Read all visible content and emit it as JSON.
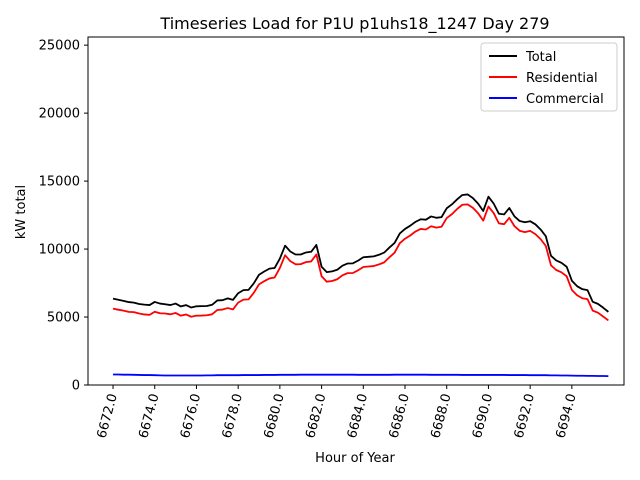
{
  "chart_data": {
    "type": "line",
    "title": "Timeseries Load for P1U p1uhs18_1247  Day 279",
    "xlabel": "Hour of Year",
    "ylabel": "kW total",
    "xlim": [
      6670.8,
      6696.5
    ],
    "ylim": [
      0,
      25600
    ],
    "xticks": [
      6672,
      6674,
      6676,
      6678,
      6680,
      6682,
      6684,
      6686,
      6688,
      6690,
      6692,
      6694
    ],
    "xtick_labels": [
      "6672.0",
      "6674.0",
      "6676.0",
      "6678.0",
      "6680.0",
      "6682.0",
      "6684.0",
      "6686.0",
      "6688.0",
      "6690.0",
      "6692.0",
      "6694.0"
    ],
    "yticks": [
      0,
      5000,
      10000,
      15000,
      20000,
      25000
    ],
    "ytick_labels": [
      "0",
      "5000",
      "10000",
      "15000",
      "20000",
      "25000"
    ],
    "legend_position": "top-right",
    "x": [
      6672.0,
      6672.25,
      6672.5,
      6672.75,
      6673.0,
      6673.25,
      6673.5,
      6673.75,
      6674.0,
      6674.25,
      6674.5,
      6674.75,
      6675.0,
      6675.25,
      6675.5,
      6675.75,
      6676.0,
      6676.25,
      6676.5,
      6676.75,
      6677.0,
      6677.25,
      6677.5,
      6677.75,
      6678.0,
      6678.25,
      6678.5,
      6678.75,
      6679.0,
      6679.25,
      6679.5,
      6679.75,
      6680.0,
      6680.25,
      6680.5,
      6680.75,
      6681.0,
      6681.25,
      6681.5,
      6681.75,
      6682.0,
      6682.25,
      6682.5,
      6682.75,
      6683.0,
      6683.25,
      6683.5,
      6683.75,
      6684.0,
      6684.25,
      6684.5,
      6684.75,
      6685.0,
      6685.25,
      6685.5,
      6685.75,
      6686.0,
      6686.25,
      6686.5,
      6686.75,
      6687.0,
      6687.25,
      6687.5,
      6687.75,
      6688.0,
      6688.25,
      6688.5,
      6688.75,
      6689.0,
      6689.25,
      6689.5,
      6689.75,
      6690.0,
      6690.25,
      6690.5,
      6690.75,
      6691.0,
      6691.25,
      6691.5,
      6691.75,
      6692.0,
      6692.25,
      6692.5,
      6692.75,
      6693.0,
      6693.25,
      6693.5,
      6693.75,
      6694.0,
      6694.25,
      6694.5,
      6694.75,
      6695.0,
      6695.25,
      6695.5,
      6695.75
    ],
    "series": [
      {
        "name": "Total",
        "color": "#000000",
        "values": [
          6350,
          6270,
          6190,
          6100,
          6060,
          5960,
          5910,
          5880,
          6110,
          5990,
          5940,
          5880,
          5990,
          5780,
          5880,
          5700,
          5790,
          5800,
          5810,
          5900,
          6220,
          6240,
          6370,
          6260,
          6750,
          6980,
          7000,
          7480,
          8110,
          8350,
          8560,
          8610,
          9300,
          10250,
          9820,
          9600,
          9600,
          9750,
          9800,
          10300,
          8700,
          8300,
          8360,
          8480,
          8780,
          8940,
          8950,
          9150,
          9400,
          9430,
          9460,
          9580,
          9740,
          10110,
          10450,
          11150,
          11480,
          11720,
          12000,
          12190,
          12160,
          12400,
          12300,
          12350,
          13000,
          13290,
          13660,
          13980,
          14020,
          13760,
          13350,
          12800,
          13850,
          13350,
          12600,
          12550,
          13020,
          12400,
          12060,
          11970,
          12050,
          11820,
          11440,
          10950,
          9500,
          9160,
          8990,
          8700,
          7670,
          7270,
          7050,
          6980,
          6120,
          5970,
          5690,
          5380
        ]
      },
      {
        "name": "Residential",
        "color": "#ff0000",
        "values": [
          5620,
          5540,
          5470,
          5380,
          5360,
          5260,
          5190,
          5160,
          5390,
          5280,
          5260,
          5200,
          5300,
          5100,
          5190,
          5020,
          5100,
          5110,
          5130,
          5200,
          5520,
          5550,
          5660,
          5560,
          6060,
          6280,
          6300,
          6780,
          7400,
          7640,
          7840,
          7910,
          8610,
          9550,
          9110,
          8880,
          8890,
          9040,
          9090,
          9600,
          8000,
          7600,
          7650,
          7780,
          8070,
          8230,
          8240,
          8440,
          8680,
          8720,
          8750,
          8870,
          9020,
          9390,
          9730,
          10430,
          10760,
          11000,
          11290,
          11480,
          11440,
          11680,
          11580,
          11640,
          12280,
          12570,
          12950,
          13260,
          13290,
          13040,
          12640,
          12090,
          13130,
          12650,
          11890,
          11830,
          12300,
          11680,
          11340,
          11250,
          11340,
          11100,
          10730,
          10230,
          8800,
          8460,
          8290,
          8000,
          6990,
          6600,
          6380,
          6320,
          5470,
          5320,
          5040,
          4750
        ]
      },
      {
        "name": "Commercial",
        "color": "#0000ff",
        "values": [
          770,
          770,
          760,
          760,
          750,
          740,
          730,
          730,
          720,
          710,
          700,
          700,
          700,
          700,
          700,
          700,
          700,
          700,
          710,
          710,
          720,
          720,
          720,
          720,
          720,
          730,
          730,
          730,
          730,
          740,
          740,
          740,
          750,
          750,
          750,
          750,
          760,
          760,
          760,
          760,
          760,
          760,
          760,
          760,
          760,
          760,
          760,
          750,
          750,
          750,
          750,
          750,
          750,
          750,
          760,
          760,
          760,
          760,
          760,
          760,
          760,
          750,
          750,
          750,
          750,
          750,
          750,
          740,
          740,
          740,
          740,
          740,
          740,
          740,
          740,
          740,
          730,
          730,
          730,
          730,
          720,
          720,
          720,
          720,
          710,
          710,
          700,
          700,
          690,
          680,
          680,
          670,
          670,
          660,
          660,
          650
        ]
      }
    ]
  }
}
